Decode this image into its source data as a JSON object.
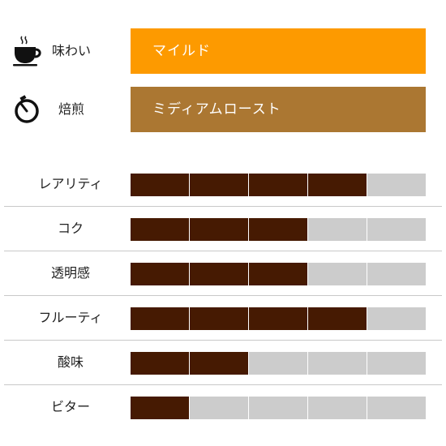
{
  "header": {
    "taste": {
      "label": "味わい",
      "value": "マイルド",
      "icon": "coffee-cup-icon",
      "color": "#fd9a00"
    },
    "roast": {
      "label": "焙煎",
      "value": "ミディアムロースト",
      "icon": "timer-icon",
      "color": "#ab7732"
    }
  },
  "ratings": {
    "max": 5,
    "filled_color": "#461a02",
    "empty_color": "#cccccc",
    "items": [
      {
        "label": "レアリティ",
        "value": 4
      },
      {
        "label": "コク",
        "value": 3
      },
      {
        "label": "透明感",
        "value": 3
      },
      {
        "label": "フルーティ",
        "value": 4
      },
      {
        "label": "酸味",
        "value": 2
      },
      {
        "label": "ビター",
        "value": 1
      }
    ]
  }
}
